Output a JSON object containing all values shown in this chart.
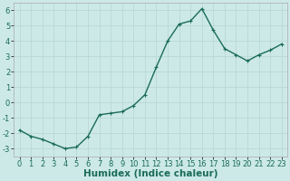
{
  "x": [
    0,
    1,
    2,
    3,
    4,
    5,
    6,
    7,
    8,
    9,
    10,
    11,
    12,
    13,
    14,
    15,
    16,
    17,
    18,
    19,
    20,
    21,
    22,
    23
  ],
  "y": [
    -1.8,
    -2.2,
    -2.4,
    -2.7,
    -3.0,
    -2.9,
    -2.2,
    -0.8,
    -0.7,
    -0.6,
    -0.2,
    0.5,
    2.3,
    4.0,
    5.1,
    5.3,
    6.1,
    4.7,
    3.5,
    3.1,
    2.7,
    3.1,
    3.4,
    3.8
  ],
  "line_color": "#1a6b5a",
  "marker": "+",
  "marker_size": 3,
  "xlabel": "Humidex (Indice chaleur)",
  "xlim": [
    -0.5,
    23.5
  ],
  "ylim": [
    -3.5,
    6.5
  ],
  "yticks": [
    -3,
    -2,
    -1,
    0,
    1,
    2,
    3,
    4,
    5,
    6
  ],
  "xticks": [
    0,
    1,
    2,
    3,
    4,
    5,
    6,
    7,
    8,
    9,
    10,
    11,
    12,
    13,
    14,
    15,
    16,
    17,
    18,
    19,
    20,
    21,
    22,
    23
  ],
  "background_color": "#cce9e7",
  "grid_color": "#b8d8d6",
  "line_width": 1.0,
  "xlabel_fontsize": 7.5,
  "tick_fontsize": 6.0,
  "marker_edge_width": 0.8
}
